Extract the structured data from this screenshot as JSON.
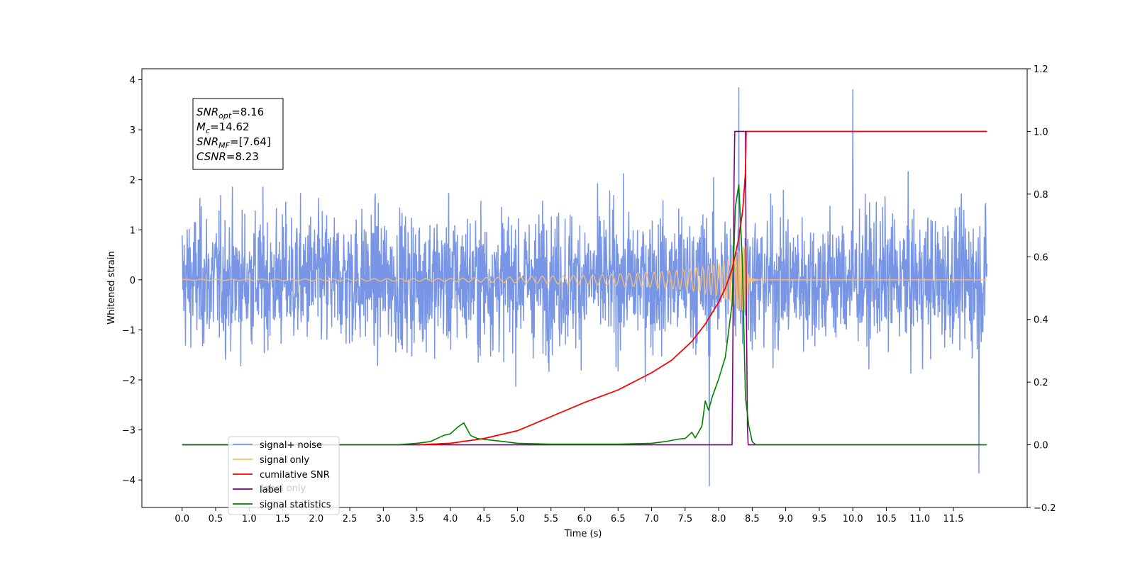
{
  "chart_data": {
    "type": "line",
    "xlabel": "Time (s)",
    "ylabel": "Whitened strain",
    "ylabel_right": "",
    "xlim": [
      -0.6,
      12.6
    ],
    "ylim": [
      -4.55,
      4.22
    ],
    "ylim_right": [
      -0.2,
      1.2
    ],
    "x_ticks": [
      0.0,
      0.5,
      1.0,
      1.5,
      2.0,
      2.5,
      3.0,
      3.5,
      4.0,
      4.5,
      5.0,
      5.5,
      6.0,
      6.5,
      7.0,
      7.5,
      8.0,
      8.5,
      9.0,
      9.5,
      10.0,
      10.5,
      11.0,
      11.5
    ],
    "x_tick_labels": [
      "0.0",
      "0.5",
      "1.0",
      "1.5",
      "2.0",
      "2.5",
      "3.0",
      "3.5",
      "4.0",
      "4.5",
      "5.0",
      "5.5",
      "6.0",
      "6.5",
      "7.0",
      "7.5",
      "8.0",
      "8.5",
      "9.0",
      "9.5",
      "10.0",
      "10.5",
      "11.0",
      "11.5"
    ],
    "y_ticks": [
      -4,
      -3,
      -2,
      -1,
      0,
      1,
      2,
      3,
      4
    ],
    "y_tick_labels": [
      "−4",
      "−3",
      "−2",
      "−1",
      "0",
      "1",
      "2",
      "3",
      "4"
    ],
    "y_ticks_right": [
      -0.2,
      0.0,
      0.2,
      0.4,
      0.6,
      0.8,
      1.0,
      1.2
    ],
    "y_tick_labels_right": [
      "−0.2",
      "0.0",
      "0.2",
      "0.4",
      "0.6",
      "0.8",
      "1.0",
      "1.2"
    ],
    "grid": false,
    "legend_position": "lower-left",
    "series": [
      {
        "name": "signal+ noise",
        "axis": "left",
        "color": "#7895e6",
        "kind": "noise_band",
        "x_range": [
          0.0,
          12.0
        ],
        "typical_amplitude": 1.6,
        "max": 3.84,
        "min": -4.12,
        "note_points": [
          [
            8.3,
            3.84
          ],
          [
            10.0,
            3.8
          ],
          [
            7.86,
            -4.12
          ],
          [
            11.88,
            -3.86
          ]
        ]
      },
      {
        "name": "signal only",
        "axis": "left",
        "color": "#ffbf66",
        "kind": "chirp",
        "x_range": [
          0.0,
          12.0
        ],
        "merger_time": 8.4,
        "peak_amplitude": 0.7,
        "envelope": [
          [
            0.0,
            0.01
          ],
          [
            4.0,
            0.03
          ],
          [
            6.0,
            0.09
          ],
          [
            7.0,
            0.15
          ],
          [
            7.5,
            0.2
          ],
          [
            8.0,
            0.32
          ],
          [
            8.2,
            0.45
          ],
          [
            8.32,
            0.62
          ],
          [
            8.4,
            0.7
          ],
          [
            8.45,
            0.05
          ],
          [
            8.6,
            0.0
          ],
          [
            12.0,
            0.0
          ]
        ]
      },
      {
        "name": "cumilative SNR",
        "axis": "right",
        "color": "#ff0000",
        "x": [
          3.5,
          4.0,
          4.5,
          5.0,
          5.5,
          6.0,
          6.5,
          7.0,
          7.3,
          7.6,
          7.8,
          8.0,
          8.1,
          8.2,
          8.3,
          8.36,
          8.4,
          8.41,
          12.0
        ],
        "values": [
          0.0,
          0.005,
          0.02,
          0.045,
          0.09,
          0.135,
          0.175,
          0.23,
          0.27,
          0.33,
          0.385,
          0.455,
          0.5,
          0.56,
          0.66,
          0.75,
          0.87,
          1.0,
          1.0
        ]
      },
      {
        "name": "label",
        "axis": "right",
        "color": "#800080",
        "x": [
          0.0,
          8.2,
          8.21,
          8.23,
          8.24,
          8.4,
          8.41,
          8.43,
          8.44,
          11.9
        ],
        "values": [
          0.0,
          0.0,
          0.25,
          0.85,
          1.0,
          1.0,
          0.5,
          0.05,
          0.0,
          0.0
        ]
      },
      {
        "name": "signal statistics",
        "axis": "right",
        "color": "#008000",
        "x": [
          0.0,
          3.2,
          3.5,
          3.7,
          3.9,
          4.0,
          4.1,
          4.2,
          4.3,
          4.4,
          4.6,
          4.8,
          5.0,
          5.5,
          6.0,
          6.5,
          7.0,
          7.2,
          7.4,
          7.5,
          7.6,
          7.65,
          7.7,
          7.75,
          7.8,
          7.85,
          7.9,
          8.0,
          8.1,
          8.2,
          8.25,
          8.3,
          8.35,
          8.4,
          8.45,
          8.5,
          8.55,
          12.0
        ],
        "values": [
          0.0,
          0.0,
          0.005,
          0.01,
          0.03,
          0.035,
          0.055,
          0.07,
          0.03,
          0.02,
          0.015,
          0.01,
          0.005,
          0.002,
          0.002,
          0.002,
          0.005,
          0.01,
          0.018,
          0.02,
          0.04,
          0.022,
          0.04,
          0.06,
          0.14,
          0.11,
          0.15,
          0.21,
          0.28,
          0.45,
          0.76,
          0.83,
          0.6,
          0.15,
          0.06,
          0.01,
          0.0,
          0.0
        ]
      }
    ],
    "annotation": {
      "lines": [
        {
          "base": "SNR",
          "sub": "opt",
          "value": "=8.16"
        },
        {
          "base": "M",
          "sub": "c",
          "value": "=14.62"
        },
        {
          "base": "SNR",
          "sub": "MF",
          "value": "=[7.64]"
        },
        {
          "base": "CSNR",
          "sub": "",
          "value": "=8.23"
        }
      ]
    },
    "legend": [
      {
        "label": "signal+ noise",
        "color": "#7895e6"
      },
      {
        "label": "signal only",
        "color": "#ffbf66"
      },
      {
        "label": "cumilative SNR",
        "color": "#ff0000"
      },
      {
        "label": "label",
        "color": "#800080"
      },
      {
        "label": "signal statistics",
        "color": "#008000"
      }
    ],
    "legend_overlap_text": [
      "label only",
      "signal statistics"
    ]
  }
}
